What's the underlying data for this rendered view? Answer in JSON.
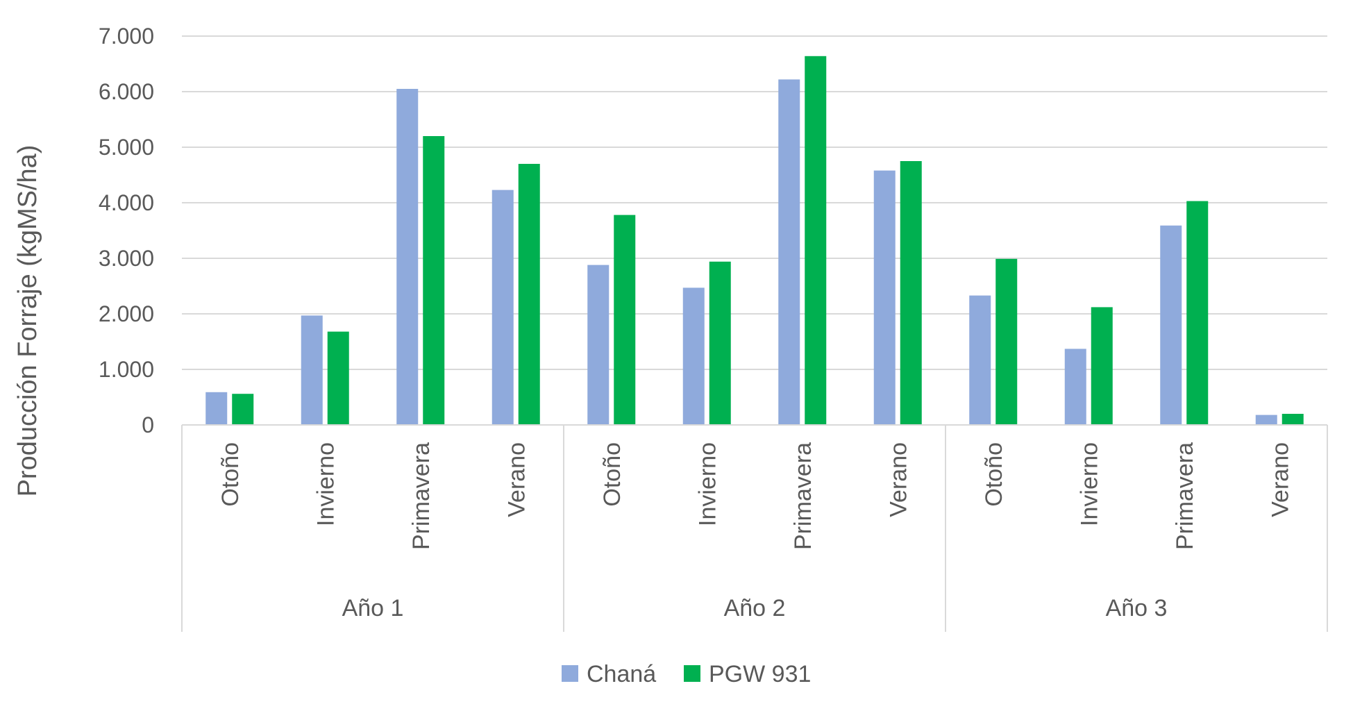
{
  "chart_data": {
    "type": "bar",
    "ylabel": "Producción Forraje (kgMS/ha)",
    "xlabel": "",
    "ylim": [
      0,
      7000
    ],
    "yticks": [
      0,
      1000,
      2000,
      3000,
      4000,
      5000,
      6000,
      7000
    ],
    "ytick_labels": [
      "0",
      "1.000",
      "2.000",
      "3.000",
      "4.000",
      "5.000",
      "6.000",
      "7.000"
    ],
    "grid": true,
    "legend_position": "bottom",
    "groups": [
      {
        "label": "Año 1",
        "categories": [
          "Otoño",
          "Invierno",
          "Primavera",
          "Verano"
        ]
      },
      {
        "label": "Año 2",
        "categories": [
          "Otoño",
          "Invierno",
          "Primavera",
          "Verano"
        ]
      },
      {
        "label": "Año 3",
        "categories": [
          "Otoño",
          "Invierno",
          "Primavera",
          "Verano"
        ]
      }
    ],
    "series": [
      {
        "name": "Chaná",
        "color": "#8faadc",
        "values": [
          590,
          1970,
          6050,
          4230,
          2880,
          2470,
          6220,
          4580,
          2330,
          1370,
          3590,
          180
        ]
      },
      {
        "name": "PGW 931",
        "color": "#00b050",
        "values": [
          560,
          1680,
          5200,
          4700,
          3780,
          2940,
          6640,
          4750,
          2990,
          2120,
          4030,
          200
        ]
      }
    ]
  }
}
